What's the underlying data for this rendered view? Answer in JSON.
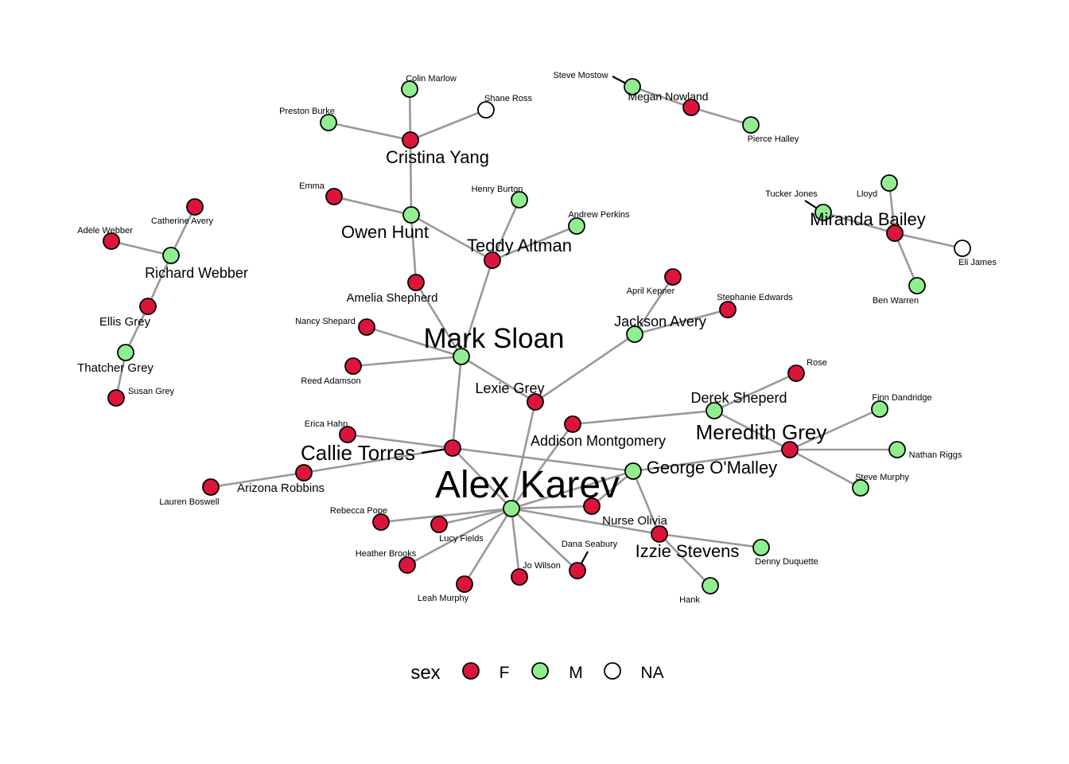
{
  "legend": {
    "title": "sex",
    "items": [
      {
        "key": "F",
        "label": "F",
        "color": "#DC143C"
      },
      {
        "key": "M",
        "label": "M",
        "color": "#90EE90"
      },
      {
        "key": "NA",
        "label": "NA",
        "color": "#FFFFFF"
      }
    ]
  },
  "nodes": [
    {
      "id": "alex-karev",
      "label": "Alex Karev",
      "sex": "M"
    },
    {
      "id": "mark-sloan",
      "label": "Mark Sloan",
      "sex": "M"
    },
    {
      "id": "callie-torres",
      "label": "Callie Torres",
      "sex": "F"
    },
    {
      "id": "meredith-grey",
      "label": "Meredith Grey",
      "sex": "F"
    },
    {
      "id": "cristina-yang",
      "label": "Cristina Yang",
      "sex": "F"
    },
    {
      "id": "miranda-bailey",
      "label": "Miranda Bailey",
      "sex": "F"
    },
    {
      "id": "george-omalley",
      "label": "George O'Malley",
      "sex": "M"
    },
    {
      "id": "izzie-stevens",
      "label": "Izzie Stevens",
      "sex": "F"
    },
    {
      "id": "addison-montgomery",
      "label": "Addison Montgomery",
      "sex": "F"
    },
    {
      "id": "owen-hunt",
      "label": "Owen Hunt",
      "sex": "M"
    },
    {
      "id": "teddy-altman",
      "label": "Teddy Altman",
      "sex": "F"
    },
    {
      "id": "richard-webber",
      "label": "Richard Webber",
      "sex": "M"
    },
    {
      "id": "derek-sheperd",
      "label": "Derek Sheperd",
      "sex": "M"
    },
    {
      "id": "jackson-avery",
      "label": "Jackson Avery",
      "sex": "M"
    },
    {
      "id": "lexie-grey",
      "label": "Lexie Grey",
      "sex": "F"
    },
    {
      "id": "megan-nowland",
      "label": "Megan Nowland",
      "sex": "F"
    },
    {
      "id": "amelia-shepherd",
      "label": "Amelia Shepherd",
      "sex": "F"
    },
    {
      "id": "arizona-robbins",
      "label": "Arizona Robbins",
      "sex": "F"
    },
    {
      "id": "ellis-grey",
      "label": "Ellis Grey",
      "sex": "F"
    },
    {
      "id": "thatcher-grey",
      "label": "Thatcher Grey",
      "sex": "M"
    },
    {
      "id": "nurse-olivia",
      "label": "Nurse Olivia",
      "sex": "F"
    },
    {
      "id": "colin-marlow",
      "label": "Colin Marlow",
      "sex": "M"
    },
    {
      "id": "shane-ross",
      "label": "Shane Ross",
      "sex": "NA"
    },
    {
      "id": "preston-burke",
      "label": "Preston Burke",
      "sex": "M"
    },
    {
      "id": "steve-mostow",
      "label": "Steve Mostow",
      "sex": "M"
    },
    {
      "id": "pierce-halley",
      "label": "Pierce Halley",
      "sex": "M"
    },
    {
      "id": "emma",
      "label": "Emma",
      "sex": "F"
    },
    {
      "id": "henry-burton",
      "label": "Henry Burton",
      "sex": "M"
    },
    {
      "id": "andrew-perkins",
      "label": "Andrew Perkins",
      "sex": "M"
    },
    {
      "id": "tucker-jones",
      "label": "Tucker Jones",
      "sex": "M"
    },
    {
      "id": "lloyd",
      "label": "Lloyd",
      "sex": "M"
    },
    {
      "id": "eli-james",
      "label": "Eli James",
      "sex": "NA"
    },
    {
      "id": "ben-warren",
      "label": "Ben Warren",
      "sex": "M"
    },
    {
      "id": "catherine-avery",
      "label": "Catherine Avery",
      "sex": "F"
    },
    {
      "id": "adele-webber",
      "label": "Adele Webber",
      "sex": "F"
    },
    {
      "id": "susan-grey",
      "label": "Susan Grey",
      "sex": "F"
    },
    {
      "id": "april-kepner",
      "label": "April Kepner",
      "sex": "F"
    },
    {
      "id": "stephanie-edwards",
      "label": "Stephanie Edwards",
      "sex": "F"
    },
    {
      "id": "nancy-shepard",
      "label": "Nancy Shepard",
      "sex": "F"
    },
    {
      "id": "reed-adamson",
      "label": "Reed Adamson",
      "sex": "F"
    },
    {
      "id": "rose",
      "label": "Rose",
      "sex": "F"
    },
    {
      "id": "finn-dandridge",
      "label": "Finn Dandridge",
      "sex": "M"
    },
    {
      "id": "nathan-riggs",
      "label": "Nathan Riggs",
      "sex": "M"
    },
    {
      "id": "steve-murphy",
      "label": "Steve Murphy",
      "sex": "M"
    },
    {
      "id": "erica-hahn",
      "label": "Erica Hahn",
      "sex": "F"
    },
    {
      "id": "lauren-boswell",
      "label": "Lauren Boswell",
      "sex": "F"
    },
    {
      "id": "rebecca-pope",
      "label": "Rebecca Pope",
      "sex": "F"
    },
    {
      "id": "lucy-fields",
      "label": "Lucy Fields",
      "sex": "F"
    },
    {
      "id": "heather-brooks",
      "label": "Heather Brooks",
      "sex": "F"
    },
    {
      "id": "leah-murphy",
      "label": "Leah Murphy",
      "sex": "F"
    },
    {
      "id": "jo-wilson",
      "label": "Jo Wilson",
      "sex": "F"
    },
    {
      "id": "dana-seabury",
      "label": "Dana Seabury",
      "sex": "F"
    },
    {
      "id": "denny-duquette",
      "label": "Denny Duquette",
      "sex": "M"
    },
    {
      "id": "hank",
      "label": "Hank",
      "sex": "M"
    }
  ],
  "edges": [
    [
      "cristina-yang",
      "colin-marlow"
    ],
    [
      "cristina-yang",
      "shane-ross"
    ],
    [
      "cristina-yang",
      "preston-burke"
    ],
    [
      "cristina-yang",
      "owen-hunt"
    ],
    [
      "owen-hunt",
      "emma"
    ],
    [
      "owen-hunt",
      "teddy-altman"
    ],
    [
      "owen-hunt",
      "amelia-shepherd"
    ],
    [
      "teddy-altman",
      "henry-burton"
    ],
    [
      "teddy-altman",
      "andrew-perkins"
    ],
    [
      "teddy-altman",
      "mark-sloan"
    ],
    [
      "amelia-shepherd",
      "mark-sloan"
    ],
    [
      "mark-sloan",
      "nancy-shepard"
    ],
    [
      "mark-sloan",
      "reed-adamson"
    ],
    [
      "mark-sloan",
      "lexie-grey"
    ],
    [
      "mark-sloan",
      "callie-torres"
    ],
    [
      "lexie-grey",
      "jackson-avery"
    ],
    [
      "lexie-grey",
      "alex-karev"
    ],
    [
      "jackson-avery",
      "april-kepner"
    ],
    [
      "jackson-avery",
      "stephanie-edwards"
    ],
    [
      "steve-mostow",
      "megan-nowland"
    ],
    [
      "megan-nowland",
      "pierce-halley"
    ],
    [
      "miranda-bailey",
      "tucker-jones"
    ],
    [
      "miranda-bailey",
      "lloyd"
    ],
    [
      "miranda-bailey",
      "eli-james"
    ],
    [
      "miranda-bailey",
      "ben-warren"
    ],
    [
      "richard-webber",
      "catherine-avery"
    ],
    [
      "richard-webber",
      "adele-webber"
    ],
    [
      "richard-webber",
      "ellis-grey"
    ],
    [
      "ellis-grey",
      "thatcher-grey"
    ],
    [
      "thatcher-grey",
      "susan-grey"
    ],
    [
      "addison-montgomery",
      "derek-sheperd"
    ],
    [
      "addison-montgomery",
      "alex-karev"
    ],
    [
      "derek-sheperd",
      "rose"
    ],
    [
      "derek-sheperd",
      "meredith-grey"
    ],
    [
      "meredith-grey",
      "finn-dandridge"
    ],
    [
      "meredith-grey",
      "nathan-riggs"
    ],
    [
      "meredith-grey",
      "steve-murphy"
    ],
    [
      "meredith-grey",
      "george-omalley"
    ],
    [
      "callie-torres",
      "erica-hahn"
    ],
    [
      "callie-torres",
      "arizona-robbins"
    ],
    [
      "callie-torres",
      "george-omalley"
    ],
    [
      "callie-torres",
      "alex-karev"
    ],
    [
      "arizona-robbins",
      "lauren-boswell"
    ],
    [
      "george-omalley",
      "alex-karev"
    ],
    [
      "george-omalley",
      "izzie-stevens"
    ],
    [
      "george-omalley",
      "nurse-olivia"
    ],
    [
      "alex-karev",
      "nurse-olivia"
    ],
    [
      "alex-karev",
      "izzie-stevens"
    ],
    [
      "alex-karev",
      "rebecca-pope"
    ],
    [
      "alex-karev",
      "lucy-fields"
    ],
    [
      "alex-karev",
      "heather-brooks"
    ],
    [
      "alex-karev",
      "leah-murphy"
    ],
    [
      "alex-karev",
      "jo-wilson"
    ],
    [
      "alex-karev",
      "dana-seabury"
    ],
    [
      "izzie-stevens",
      "denny-duquette"
    ],
    [
      "izzie-stevens",
      "hank"
    ]
  ]
}
